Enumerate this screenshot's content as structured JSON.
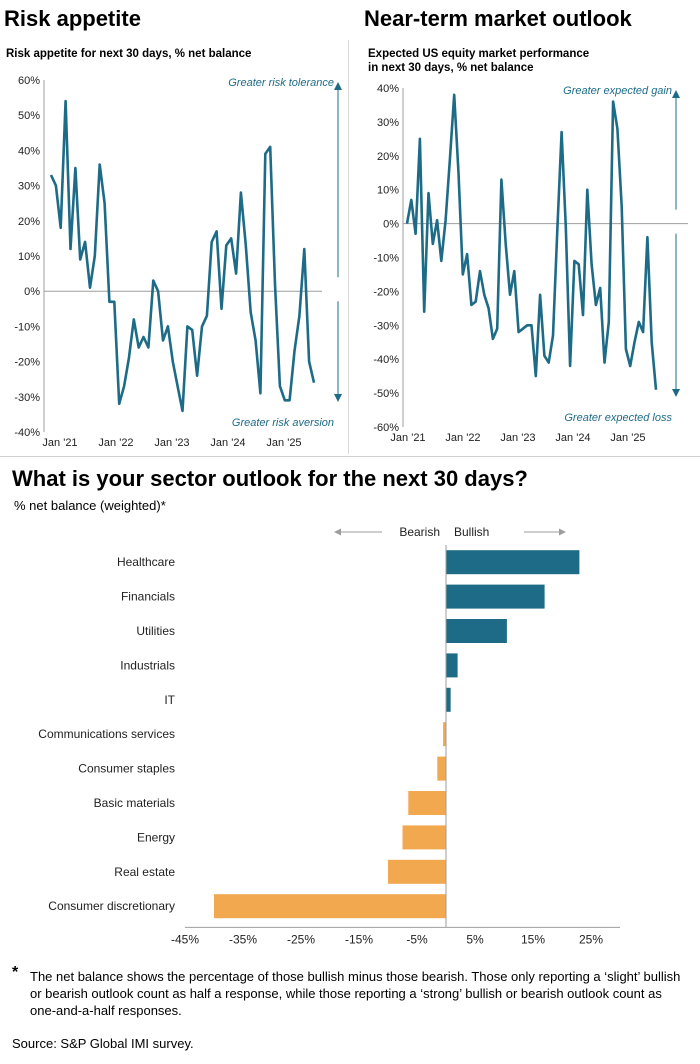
{
  "panels": {
    "risk": {
      "title": "Risk appetite",
      "subtitle": "Risk appetite for next 30 days, % net balance",
      "annot_top": "Greater risk tolerance",
      "annot_bottom": "Greater risk aversion"
    },
    "outlook": {
      "title": "Near-term market outlook",
      "subtitle_line1": "Expected US equity market performance",
      "subtitle_line2": "in next 30 days, % net balance",
      "annot_top": "Greater expected gain",
      "annot_bottom": "Greater  expected loss"
    },
    "sector": {
      "title": "What is your sector outlook for the next 30 days?",
      "subtitle": "% net balance (weighted)*",
      "bearish": "Bearish",
      "bullish": "Bullish"
    }
  },
  "footnote": {
    "star": "*",
    "text": "The net balance shows the percentage of those bullish minus those bearish. Those only reporting a ‘slight’ bullish or bearish outlook count as half a response, while those reporting a ‘strong’ bullish or bearish outlook count as one-and-a-half responses.",
    "source": "Source: S&P Global IMI survey."
  },
  "colors": {
    "teal": "#1e6b87",
    "orange": "#f2a84f",
    "axis": "#9e9e9e",
    "text": "#000000"
  },
  "chart_data": [
    {
      "type": "line",
      "id": "risk",
      "x_ticks": [
        "Jan '21",
        "Jan '22",
        "Jan '23",
        "Jan '24",
        "Jan '25"
      ],
      "ylim": [
        -40,
        60
      ],
      "y_ticks": [
        "60%",
        "50%",
        "40%",
        "30%",
        "20%",
        "10%",
        "0%",
        "-10%",
        "-20%",
        "-30%",
        "-40%"
      ],
      "series": [
        {
          "values": [
            33,
            30,
            18,
            54,
            12,
            35,
            9,
            14,
            1,
            10,
            36,
            25,
            -3,
            -3,
            -32,
            -27,
            -19,
            -8,
            -16,
            -13,
            -16,
            3,
            0,
            -14,
            -10,
            -20,
            -27,
            -34,
            -10,
            -11,
            -24,
            -10,
            -7,
            14,
            17,
            -5,
            13,
            15,
            5,
            28,
            13,
            -6,
            -14,
            -29,
            39,
            41,
            2,
            -27,
            -31,
            -31,
            -17,
            -7,
            12,
            -20,
            -26
          ]
        }
      ]
    },
    {
      "type": "line",
      "id": "outlook",
      "x_ticks": [
        "Jan '21",
        "Jan '22",
        "Jan '23",
        "Jan '24",
        "Jan '25"
      ],
      "ylim": [
        -60,
        40
      ],
      "y_ticks": [
        "40%",
        "30%",
        "20%",
        "10%",
        "0%",
        "-10%",
        "-20%",
        "-30%",
        "-40%",
        "-50%",
        "-60%"
      ],
      "series": [
        {
          "values": [
            0,
            7,
            -3,
            25,
            -26,
            9,
            -6,
            1,
            -11,
            1,
            19,
            38,
            15,
            -15,
            -9,
            -24,
            -23,
            -14,
            -21,
            -25,
            -34,
            -31,
            13,
            -6,
            -21,
            -14,
            -32,
            -31,
            -30,
            -30,
            -45,
            -21,
            -39,
            -41,
            -33,
            -2,
            27,
            -1,
            -42,
            -11,
            -12,
            -27,
            10,
            -12,
            -24,
            -19,
            -41,
            -29,
            36,
            28,
            5,
            -37,
            -42,
            -35,
            -29,
            -32,
            -4,
            -35,
            -49
          ]
        }
      ]
    },
    {
      "type": "bar",
      "id": "sector",
      "orientation": "horizontal",
      "categories": [
        "Healthcare",
        "Financials",
        "Utilities",
        "Industrials",
        "IT",
        "Communications services",
        "Consumer staples",
        "Basic materials",
        "Energy",
        "Real estate",
        "Consumer discretionary"
      ],
      "values": [
        23,
        17,
        10.5,
        2,
        0.8,
        -0.5,
        -1.5,
        -6.5,
        -7.5,
        -10,
        -40
      ],
      "xlim": [
        -45,
        30
      ],
      "x_ticks": [
        "-45%",
        "-35%",
        "-25%",
        "-15%",
        "-5%",
        "5%",
        "15%",
        "25%"
      ]
    }
  ]
}
